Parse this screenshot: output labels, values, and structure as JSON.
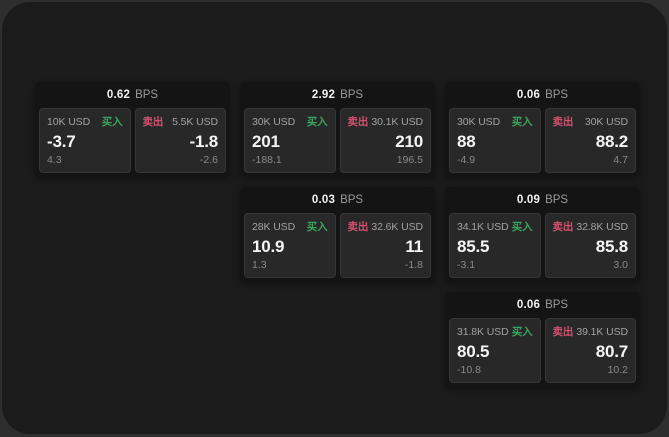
{
  "window": {
    "backdrop_color": "#2e2e2e",
    "surface_color": "#1b1b1b"
  },
  "labels": {
    "buy": "买入",
    "sell": "卖出",
    "bps": "BPS"
  },
  "colors": {
    "buy_green": "#3ba55d",
    "sell_red": "#d2516e",
    "card_bg": "#141414",
    "panel_bg": "#282828"
  },
  "cards": [
    {
      "bps": "0.62",
      "buy": {
        "amount": "10K USD",
        "price": "-3.7",
        "delta": "4.3"
      },
      "sell": {
        "amount": "5.5K USD",
        "price": "-1.8",
        "delta": "-2.6"
      }
    },
    {
      "bps": "2.92",
      "buy": {
        "amount": "30K USD",
        "price": "201",
        "delta": "-188.1"
      },
      "sell": {
        "amount": "30.1K USD",
        "price": "210",
        "delta": "196.5"
      }
    },
    {
      "bps": "0.06",
      "buy": {
        "amount": "30K USD",
        "price": "88",
        "delta": "-4.9"
      },
      "sell": {
        "amount": "30K USD",
        "price": "88.2",
        "delta": "4.7"
      }
    },
    {
      "bps": "0.03",
      "buy": {
        "amount": "28K USD",
        "price": "10.9",
        "delta": "1.3"
      },
      "sell": {
        "amount": "32.6K USD",
        "price": "11",
        "delta": "-1.8"
      }
    },
    {
      "bps": "0.09",
      "buy": {
        "amount": "34.1K USD",
        "price": "85.5",
        "delta": "-3.1"
      },
      "sell": {
        "amount": "32.8K USD",
        "price": "85.8",
        "delta": "3.0"
      }
    },
    {
      "bps": "0.06",
      "buy": {
        "amount": "31.8K USD",
        "price": "80.5",
        "delta": "-10.8"
      },
      "sell": {
        "amount": "39.1K USD",
        "price": "80.7",
        "delta": "10.2"
      }
    }
  ]
}
